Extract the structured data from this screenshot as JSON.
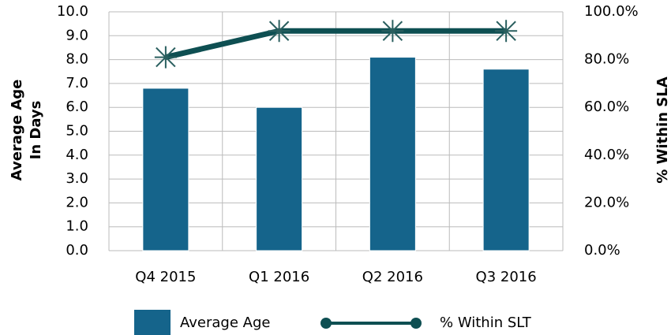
{
  "chart_data": {
    "type": "bar",
    "categories": [
      "Q4 2015",
      "Q1 2016",
      "Q2 2016",
      "Q3 2016"
    ],
    "series": [
      {
        "name": "Average Age",
        "type": "bar",
        "color": "#15648b",
        "values": [
          6.8,
          6.0,
          8.1,
          7.6
        ]
      },
      {
        "name": "% Within SLT",
        "type": "line",
        "axis": "y2",
        "color": "#0e4f52",
        "values": [
          81,
          92,
          92,
          92
        ]
      }
    ],
    "ylabel": [
      "Average Age",
      "In Days"
    ],
    "y2label": "% Within SLA",
    "ylim": [
      0,
      10
    ],
    "yticks": [
      {
        "value": 0,
        "label": "0.0"
      },
      {
        "value": 1,
        "label": "1.0"
      },
      {
        "value": 2,
        "label": "2.0"
      },
      {
        "value": 3,
        "label": "3.0"
      },
      {
        "value": 4,
        "label": "4.0"
      },
      {
        "value": 5,
        "label": "5.0"
      },
      {
        "value": 6,
        "label": "6.0"
      },
      {
        "value": 7,
        "label": "7.0"
      },
      {
        "value": 8,
        "label": "8.0"
      },
      {
        "value": 9,
        "label": "9.0"
      },
      {
        "value": 10,
        "label": "10.0"
      }
    ],
    "y2lim": [
      0,
      100
    ],
    "y2ticks": [
      {
        "value": 0,
        "label": "0.0%"
      },
      {
        "value": 20,
        "label": "20.0%"
      },
      {
        "value": 40,
        "label": "40.0%"
      },
      {
        "value": 60,
        "label": "60.0%"
      },
      {
        "value": 80,
        "label": "80.0%"
      },
      {
        "value": 100,
        "label": "100.0%"
      }
    ],
    "grid": true,
    "legend": "bottom"
  }
}
